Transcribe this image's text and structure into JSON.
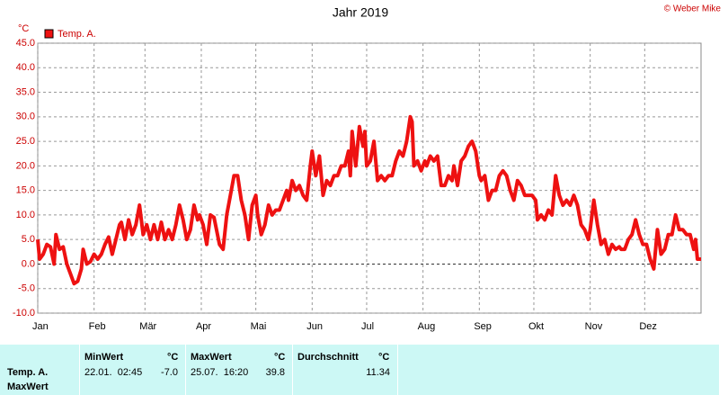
{
  "chart_data": {
    "type": "line",
    "title": "Jahr 2019",
    "credit": "© Weber Mike",
    "ylabel": "°C",
    "x": [
      0,
      1,
      3,
      5,
      7,
      9,
      10,
      12,
      14,
      16,
      18,
      20,
      22,
      24,
      25,
      27,
      29,
      31,
      33,
      35,
      37,
      39,
      41,
      43,
      45,
      46,
      48,
      50,
      52,
      54,
      56,
      57,
      58,
      60,
      62,
      64,
      66,
      68,
      70,
      72,
      74,
      76,
      78,
      80,
      82,
      84,
      86,
      88,
      89,
      91,
      93,
      95,
      97,
      100,
      102,
      104,
      106,
      108,
      110,
      112,
      114,
      116,
      118,
      120,
      121,
      123,
      125,
      127,
      129,
      131,
      133,
      135,
      137,
      138,
      140,
      142,
      144,
      146,
      148,
      150,
      151,
      153,
      155,
      157,
      159,
      161,
      163,
      165,
      167,
      169,
      171,
      172,
      173,
      175,
      177,
      179,
      180,
      181,
      183,
      185,
      187,
      189,
      191,
      193,
      195,
      197,
      199,
      201,
      203,
      205,
      206,
      207,
      209,
      211,
      213,
      214,
      216,
      218,
      220,
      222,
      224,
      226,
      228,
      229,
      231,
      233,
      235,
      237,
      239,
      241,
      243,
      244,
      246,
      248,
      250,
      252,
      254,
      256,
      258,
      260,
      262,
      264,
      266,
      268,
      270,
      272,
      274,
      275,
      277,
      279,
      281,
      283,
      285,
      287,
      289,
      291,
      293,
      295,
      297,
      299,
      301,
      303,
      304,
      306,
      308,
      310,
      312,
      314,
      316,
      318,
      320,
      321,
      323,
      325,
      327,
      329,
      331,
      333,
      335,
      337,
      339,
      341,
      343,
      345,
      347,
      349,
      351,
      353,
      355,
      357,
      359,
      361,
      362,
      363,
      365
    ],
    "series": [
      {
        "name": "Temp. A.",
        "color": "#ee1111",
        "values": [
          5,
          1,
          2,
          4,
          3.5,
          0,
          6,
          3,
          3.5,
          0,
          -2,
          -4,
          -3.5,
          -1,
          3,
          0,
          0.5,
          2,
          1,
          2,
          4,
          5.5,
          2,
          5,
          8,
          8.5,
          5,
          9,
          6,
          8,
          12,
          9,
          6,
          8,
          5,
          8,
          5,
          8.5,
          5,
          7,
          5,
          8,
          12,
          9,
          5,
          7,
          12,
          9,
          10,
          8,
          4,
          10,
          9.5,
          4,
          3,
          10,
          14,
          18,
          18,
          13,
          10,
          5,
          12,
          14,
          10,
          6,
          8,
          12,
          10,
          11,
          11,
          13,
          15,
          13,
          17,
          15,
          16,
          14,
          13,
          20,
          23,
          18,
          22,
          14,
          17,
          16,
          18,
          18,
          20,
          20,
          23,
          18,
          27,
          20,
          28,
          24,
          27,
          20,
          21,
          25,
          17,
          18,
          17,
          18,
          18,
          21,
          23,
          22,
          25,
          30,
          29,
          20,
          21,
          19,
          21,
          20,
          22,
          21,
          22,
          16,
          16,
          18,
          17,
          20,
          16,
          21,
          22,
          24,
          25,
          23,
          18,
          17,
          18,
          13,
          15,
          15,
          18,
          19,
          18,
          15,
          13,
          17,
          16,
          14,
          14,
          14,
          13,
          9,
          10,
          9,
          11,
          10,
          18,
          14,
          12,
          13,
          12,
          14,
          12,
          8,
          7,
          5,
          7,
          13,
          8,
          4,
          5,
          2,
          4,
          3,
          3.5,
          3,
          3,
          5,
          6,
          9,
          6,
          4,
          4,
          1,
          -1,
          7,
          2,
          3,
          6,
          6,
          10,
          7,
          7,
          6,
          6,
          3,
          5,
          1,
          1
        ]
      }
    ],
    "xlim": [
      0,
      365
    ],
    "xticks": [
      {
        "value": 0,
        "label": "Jan"
      },
      {
        "value": 31,
        "label": "Feb"
      },
      {
        "value": 59,
        "label": "Mär"
      },
      {
        "value": 90,
        "label": "Apr"
      },
      {
        "value": 120,
        "label": "Mai"
      },
      {
        "value": 151,
        "label": "Jun"
      },
      {
        "value": 181,
        "label": "Jul"
      },
      {
        "value": 212,
        "label": "Aug"
      },
      {
        "value": 243,
        "label": "Sep"
      },
      {
        "value": 273,
        "label": "Okt"
      },
      {
        "value": 304,
        "label": "Nov"
      },
      {
        "value": 334,
        "label": "Dez"
      }
    ],
    "ylim": [
      -10,
      45
    ],
    "yticks": [
      {
        "value": -10,
        "label": "-10.0"
      },
      {
        "value": -5,
        "label": "-5.0"
      },
      {
        "value": 0,
        "label": "0.0"
      },
      {
        "value": 5,
        "label": "5.0"
      },
      {
        "value": 10,
        "label": "10.0"
      },
      {
        "value": 15,
        "label": "15.0"
      },
      {
        "value": 20,
        "label": "20.0"
      },
      {
        "value": 25,
        "label": "25.0"
      },
      {
        "value": 30,
        "label": "30.0"
      },
      {
        "value": 35,
        "label": "35.0"
      },
      {
        "value": 40,
        "label": "40.0"
      },
      {
        "value": 45,
        "label": "45.0"
      }
    ],
    "grid": true
  },
  "table": {
    "columns": [
      {
        "name": "MinWert",
        "unit": "°C"
      },
      {
        "name": "MaxWert",
        "unit": "°C"
      },
      {
        "name": "Durchschnitt",
        "unit": "°C"
      }
    ],
    "row_labels": [
      "Temp. A.",
      "MaxWert"
    ],
    "cells": [
      {
        "time": "22.01.  02:45",
        "value": "-7.0"
      },
      {
        "time": "25.07.  16:20",
        "value": "39.8"
      },
      {
        "value": "11.34"
      }
    ]
  }
}
